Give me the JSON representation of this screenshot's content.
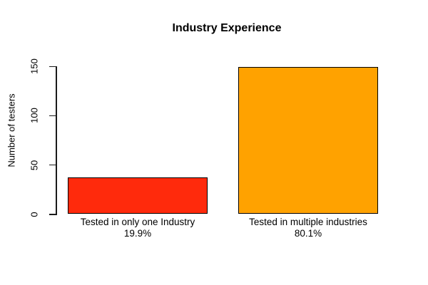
{
  "chart_data": {
    "type": "bar",
    "title": "Industry Experience",
    "xlabel": "",
    "ylabel": "Number of testers",
    "categories": [
      "Tested in only one Industry",
      "Tested in multiple industries"
    ],
    "values": [
      37,
      149
    ],
    "percent_labels": [
      "19.9%",
      "80.1%"
    ],
    "bar_colors": [
      "#ff2a0c",
      "#ffa200"
    ],
    "bar_border_color": "#000000",
    "ylim": [
      0,
      150
    ],
    "yticks": [
      0,
      50,
      100,
      150
    ],
    "grid": false,
    "legend": false,
    "background_color": "#ffffff",
    "axis_color": "#1a1a1a"
  }
}
